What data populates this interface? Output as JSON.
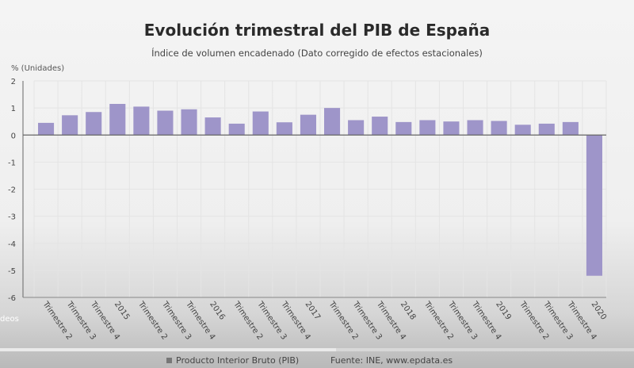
{
  "chart_data": {
    "type": "bar",
    "title": "Evolución trimestral del PIB de España",
    "subtitle": "Índice de volumen encadenado (Dato corregido de efectos estacionales)",
    "ylabel": "% (Unidades)",
    "xlabel": "",
    "ylim": [
      -6,
      2
    ],
    "yticks": [
      2,
      1,
      0,
      -1,
      -2,
      -3,
      -4,
      -5,
      -6
    ],
    "grid": true,
    "categories": [
      "Trimestre 2",
      "Trimestre 3",
      "Trimestre 4",
      "2015",
      "Trimestre 2",
      "Trimestre 3",
      "Trimestre 4",
      "2016",
      "Trimestre 2",
      "Trimestre 3",
      "Trimestre 4",
      "2017",
      "Trimestre 2",
      "Trimestre 3",
      "Trimestre 4",
      "2018",
      "Trimestre 2",
      "Trimestre 3",
      "Trimestre 4",
      "2019",
      "Trimestre 2",
      "Trimestre 3",
      "Trimestre 4",
      "2020"
    ],
    "series": [
      {
        "name": "Producto Interior Bruto (PIB)",
        "color": "#9e95c9",
        "values": [
          0.45,
          0.73,
          0.85,
          1.15,
          1.05,
          0.9,
          0.95,
          0.65,
          0.42,
          0.87,
          0.47,
          0.75,
          1.0,
          0.55,
          0.68,
          0.48,
          0.55,
          0.5,
          0.55,
          0.52,
          0.38,
          0.42,
          0.48,
          -5.2
        ]
      }
    ],
    "legend": "bottom",
    "source": "Fuente: INE, www.epdata.es"
  },
  "video": {
    "side_label": "deos",
    "progress": 0.53
  }
}
